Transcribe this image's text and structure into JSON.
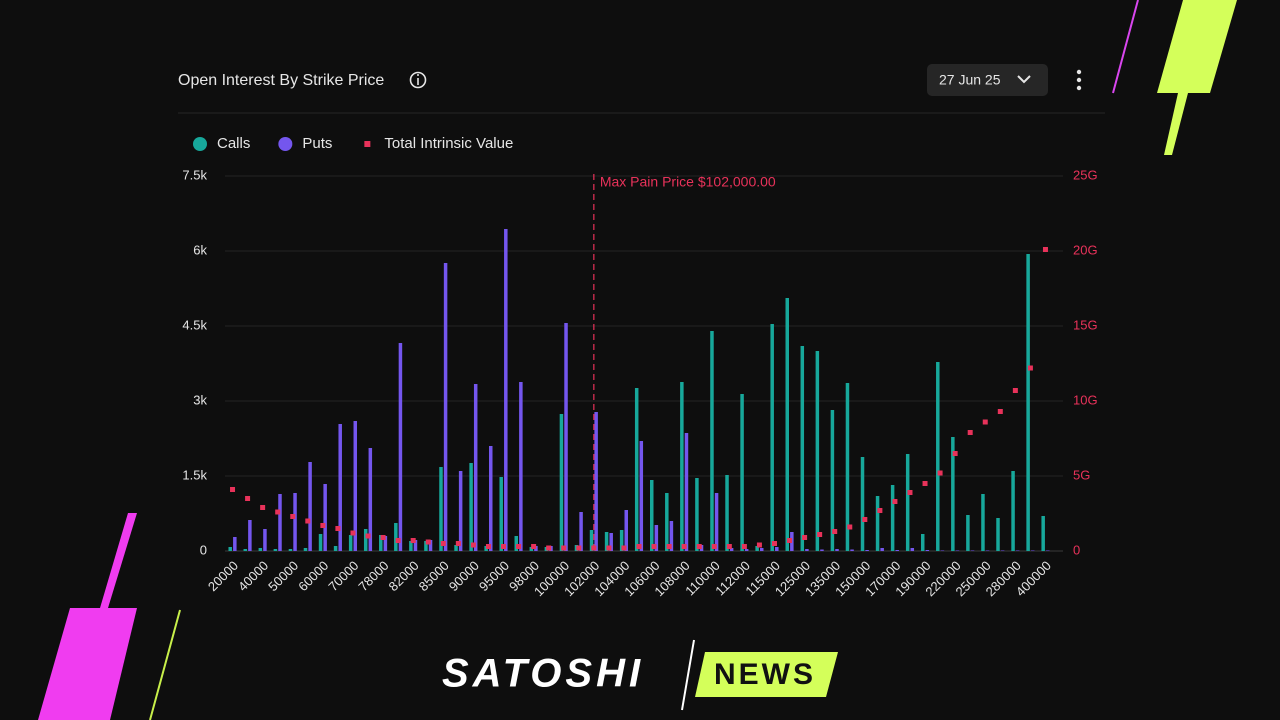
{
  "chart_data": {
    "type": "bar",
    "title": "Open Interest By Strike Price",
    "expiry": "27 Jun 25",
    "annotation": {
      "text": "Max Pain Price $102,000.00",
      "x": "102000",
      "color": "#e8325a"
    },
    "categories": [
      "20000",
      null,
      "40000",
      null,
      "50000",
      null,
      "60000",
      null,
      "70000",
      null,
      "78000",
      null,
      "82000",
      null,
      "85000",
      null,
      "90000",
      null,
      "95000",
      null,
      "98000",
      null,
      "100000",
      null,
      "102000",
      null,
      "104000",
      null,
      "106000",
      null,
      "108000",
      null,
      "110000",
      null,
      "112000",
      null,
      "115000",
      null,
      "125000",
      null,
      "135000",
      null,
      "150000",
      null,
      "170000",
      null,
      "190000",
      null,
      "220000",
      null,
      "250000",
      null,
      "280000",
      null,
      "400000"
    ],
    "series": [
      {
        "name": "Calls",
        "color": "#17a89b",
        "values": [
          80,
          40,
          60,
          40,
          40,
          60,
          340,
          100,
          320,
          440,
          320,
          560,
          200,
          200,
          1680,
          120,
          1760,
          100,
          1480,
          300,
          80,
          80,
          2740,
          120,
          420,
          380,
          420,
          3260,
          1420,
          1160,
          3380,
          1460,
          4400,
          1520,
          3140,
          100,
          4540,
          5060,
          4100,
          4000,
          2820,
          3360,
          1880,
          1100,
          1320,
          1940,
          340,
          3780,
          2280,
          720,
          1140,
          660,
          1600,
          5940,
          700
        ]
      },
      {
        "name": "Puts",
        "color": "#7456ee",
        "values": [
          280,
          620,
          440,
          1140,
          1160,
          1780,
          1340,
          2540,
          2600,
          2060,
          300,
          4160,
          220,
          220,
          5760,
          1600,
          3340,
          2100,
          6440,
          3380,
          100,
          100,
          4560,
          780,
          2780,
          360,
          820,
          2200,
          520,
          600,
          2360,
          120,
          1160,
          60,
          40,
          60,
          80,
          380,
          40,
          30,
          40,
          30,
          20,
          60,
          20,
          60,
          20,
          10,
          10,
          10,
          10,
          10,
          10,
          10,
          10
        ]
      },
      {
        "name": "Total Intrinsic Value",
        "color": "#e8325a",
        "axis": "y2",
        "marker": "square",
        "values": [
          4.1,
          3.5,
          2.9,
          2.6,
          2.3,
          2.0,
          1.7,
          1.5,
          1.2,
          1.0,
          0.9,
          0.7,
          0.7,
          0.6,
          0.5,
          0.5,
          0.4,
          0.3,
          0.3,
          0.3,
          0.3,
          0.2,
          0.2,
          0.2,
          0.2,
          0.2,
          0.2,
          0.3,
          0.3,
          0.3,
          0.3,
          0.3,
          0.3,
          0.3,
          0.3,
          0.4,
          0.5,
          0.7,
          0.9,
          1.1,
          1.3,
          1.6,
          2.1,
          2.7,
          3.3,
          3.9,
          4.5,
          5.2,
          6.5,
          7.9,
          8.6,
          9.3,
          10.7,
          12.2,
          20.1
        ]
      }
    ],
    "ylim": [
      0,
      7500
    ],
    "yticks": [
      0,
      {
        "value": 1500,
        "label": "1.5k"
      },
      {
        "value": 3000,
        "label": "3k"
      },
      {
        "value": 4500,
        "label": "4.5k"
      },
      {
        "value": 6000,
        "label": "6k"
      },
      {
        "value": 7500,
        "label": "7.5k"
      }
    ],
    "y2lim": [
      0,
      25
    ],
    "y2ticks": [
      0,
      {
        "value": 5,
        "label": "5G"
      },
      {
        "value": 10,
        "label": "10G"
      },
      {
        "value": 15,
        "label": "15G"
      },
      {
        "value": 20,
        "label": "20G"
      },
      {
        "value": 25,
        "label": "25G"
      }
    ],
    "grid": true,
    "legend": "top-left"
  },
  "watermark": {
    "left": "SATOSHI",
    "right": "NEWS"
  }
}
